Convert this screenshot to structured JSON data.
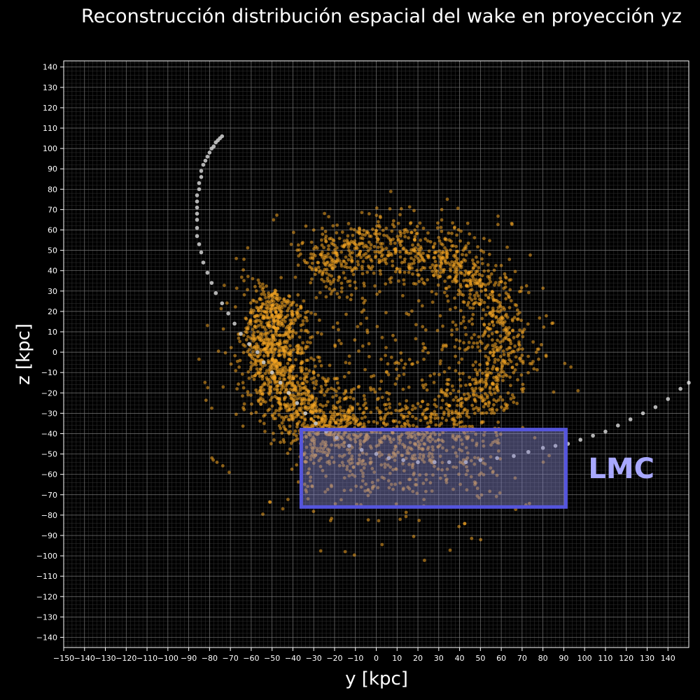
{
  "chart_data": {
    "type": "scatter",
    "title": "Reconstrucción distribución espacial del wake en proyección yz",
    "xlabel": "y [kpc]",
    "ylabel": "z [kpc]",
    "xlim": [
      -150,
      150
    ],
    "ylim": [
      -145,
      143
    ],
    "x_ticks": [
      -150,
      -140,
      -130,
      -120,
      -110,
      -100,
      -90,
      -80,
      -70,
      -60,
      -50,
      -40,
      -30,
      -20,
      -10,
      0,
      10,
      20,
      30,
      40,
      50,
      60,
      70,
      80,
      90,
      100,
      110,
      120,
      130,
      140
    ],
    "y_ticks": [
      -140,
      -130,
      -120,
      -110,
      -100,
      -90,
      -80,
      -70,
      -60,
      -50,
      -40,
      -30,
      -20,
      -10,
      0,
      10,
      20,
      30,
      40,
      50,
      60,
      70,
      80,
      90,
      100,
      110,
      120,
      130,
      140
    ],
    "grid": true,
    "colors": {
      "background": "#000000",
      "particles": "#f5a623",
      "orbit": "#c8c8c8",
      "box_edge": "#5555dd",
      "box_fill": "#8888cc",
      "annotation": "#a8a8ff"
    },
    "series": [
      {
        "kind": "particles",
        "color": "#f5a623",
        "ring": {
          "center": [
            5,
            5
          ],
          "radius": [
            57,
            46
          ],
          "thickness": 8
        },
        "arcs": [
          {
            "from_deg": 150,
            "to_deg": 250,
            "weight": 1.0
          },
          {
            "from_deg": 40,
            "to_deg": 130,
            "weight": 0.6
          },
          {
            "from_deg": -40,
            "to_deg": 40,
            "weight": 0.5
          },
          {
            "from_deg": 250,
            "to_deg": 320,
            "weight": 0.35
          }
        ],
        "count": 3200
      },
      {
        "kind": "orbit",
        "color": "#c8c8c8",
        "points": [
          [
            -74,
            106
          ],
          [
            -75,
            105
          ],
          [
            -76,
            104
          ],
          [
            -77,
            103
          ],
          [
            -78,
            101
          ],
          [
            -79,
            100
          ],
          [
            -80,
            98
          ],
          [
            -81,
            96
          ],
          [
            -82,
            94
          ],
          [
            -83,
            92
          ],
          [
            -84,
            89
          ],
          [
            -84,
            86
          ],
          [
            -85,
            83
          ],
          [
            -85,
            80
          ],
          [
            -86,
            77
          ],
          [
            -86,
            74
          ],
          [
            -86,
            71
          ],
          [
            -86,
            68
          ],
          [
            -86,
            65
          ],
          [
            -86,
            61
          ],
          [
            -86,
            57
          ],
          [
            -85,
            53
          ],
          [
            -84,
            49
          ],
          [
            -83,
            44
          ],
          [
            -81,
            39
          ],
          [
            -79,
            34
          ],
          [
            -77,
            29
          ],
          [
            -74,
            24
          ],
          [
            -71,
            19
          ],
          [
            -68,
            14
          ],
          [
            -65,
            9
          ],
          [
            -61,
            4
          ],
          [
            -57,
            0
          ],
          [
            -54,
            -5
          ],
          [
            -50,
            -10
          ],
          [
            -46,
            -15
          ],
          [
            -42,
            -20
          ],
          [
            -38,
            -25
          ],
          [
            -34,
            -30
          ],
          [
            -29,
            -35
          ],
          [
            -24,
            -39
          ],
          [
            -19,
            -42
          ],
          [
            -13,
            -46
          ],
          [
            -7,
            -48
          ],
          [
            0,
            -50
          ],
          [
            6,
            -52
          ],
          [
            13,
            -53
          ],
          [
            20,
            -54
          ],
          [
            28,
            -54
          ],
          [
            35,
            -54
          ],
          [
            43,
            -54
          ],
          [
            50,
            -53
          ],
          [
            58,
            -52
          ],
          [
            66,
            -51
          ],
          [
            73,
            -49
          ],
          [
            80,
            -47
          ],
          [
            86,
            -46
          ],
          [
            92,
            -45
          ],
          [
            98,
            -43
          ],
          [
            104,
            -41
          ],
          [
            110,
            -39
          ],
          [
            116,
            -36
          ],
          [
            122,
            -33
          ],
          [
            128,
            -30
          ],
          [
            134,
            -27
          ],
          [
            140,
            -23
          ],
          [
            146,
            -18
          ],
          [
            150,
            -15
          ]
        ]
      }
    ],
    "annotation_box": {
      "label": "LMC",
      "y_range": [
        -36,
        91
      ],
      "z_range": [
        -76,
        -38
      ]
    }
  }
}
